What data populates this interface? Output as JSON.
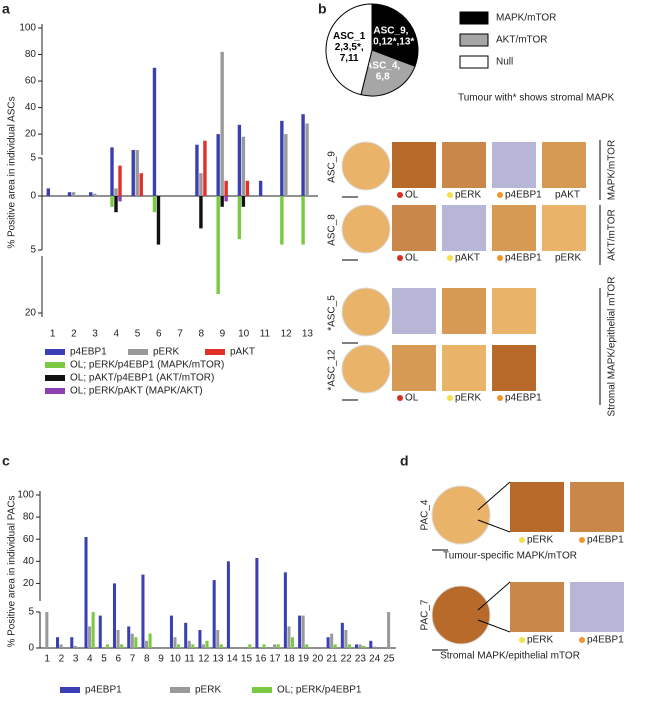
{
  "panel_labels": [
    "a",
    "b",
    "c",
    "d"
  ],
  "chart_data": [
    {
      "type": "bar",
      "y_label": "% Positive area in individual ASCs",
      "categories": [
        "1",
        "2",
        "3",
        "4",
        "5",
        "6",
        "7",
        "8",
        "9",
        "10",
        "11",
        "12",
        "13"
      ],
      "ylim": [
        0,
        100
      ],
      "axis_break": 5,
      "yticks": [
        0,
        5,
        20,
        40,
        60,
        80,
        100
      ],
      "ylim_down": [
        0,
        20
      ],
      "yticks_down": [
        5,
        20
      ],
      "series": [
        {
          "name": "p4EBP1",
          "color": "#3a3fb3",
          "values": [
            1,
            0.5,
            0.5,
            10,
            8,
            70,
            0,
            12,
            20,
            27,
            2,
            30,
            35
          ]
        },
        {
          "name": "pERK",
          "color": "#9a9a9a",
          "values": [
            0,
            0.5,
            0.3,
            1,
            8,
            0,
            0,
            3,
            82,
            18,
            0,
            20,
            28
          ]
        },
        {
          "name": "pAKT",
          "color": "#e0302a",
          "values": [
            0,
            0,
            0,
            4,
            3,
            0,
            0,
            15,
            2,
            2,
            0,
            0,
            0
          ]
        },
        {
          "name": "OL; pERK/p4EBP1 (MAPK/mTOR)",
          "color": "#7ac943",
          "direction": "down",
          "values": [
            0,
            0,
            0,
            1,
            0,
            1.5,
            0,
            0,
            15,
            4,
            0,
            4.5,
            4.5
          ]
        },
        {
          "name": "OL; pAKT/p4EBP1 (AKT/mTOR)",
          "color": "#111111",
          "direction": "down",
          "values": [
            0,
            0,
            0,
            1.5,
            0,
            4.5,
            0,
            3,
            1,
            1,
            0,
            0,
            0
          ]
        },
        {
          "name": "OL; pERK/pAKT    (MAPK/AKT)",
          "color": "#8b3fb0",
          "direction": "down",
          "values": [
            0,
            0,
            0,
            0.5,
            0,
            0,
            0,
            0,
            0.5,
            0,
            0,
            0,
            0
          ]
        }
      ]
    },
    {
      "type": "pie",
      "categories": [
        "MAPK/mTOR",
        "AKT/mTOR",
        "Null"
      ],
      "values": [
        4,
        3,
        6
      ],
      "colors": [
        "#000000",
        "#a6a6a6",
        "#ffffff"
      ],
      "slice_labels": [
        [
          "ASC_9,",
          "10,12*,13*"
        ],
        [
          "ASC_4,",
          "6,8"
        ],
        [
          "ASC_1",
          "2,3,5*,",
          "7,11"
        ]
      ],
      "note": "Tumour with* shows stromal MAPK"
    },
    {
      "type": "bar",
      "y_label": "% Positive area in individual PACs",
      "categories": [
        "1",
        "2",
        "3",
        "4",
        "5",
        "6",
        "7",
        "8",
        "9",
        "10",
        "11",
        "12",
        "13",
        "14",
        "15",
        "16",
        "17",
        "18",
        "19",
        "20",
        "21",
        "22",
        "23",
        "24",
        "25"
      ],
      "ylim": [
        0,
        100
      ],
      "axis_break": 5,
      "yticks": [
        0,
        5,
        20,
        40,
        60,
        80,
        100
      ],
      "series": [
        {
          "name": "p4EBP1",
          "color": "#3a3fb3",
          "values": [
            0,
            1.5,
            1.5,
            62,
            4.5,
            20,
            3,
            28,
            0,
            4.5,
            3.5,
            2.5,
            23,
            40,
            0,
            43,
            0,
            30,
            4.5,
            0,
            1.5,
            3.5,
            0.5,
            1,
            0
          ]
        },
        {
          "name": "pERK",
          "color": "#9a9a9a",
          "values": [
            5,
            0.5,
            0.3,
            3,
            0,
            2.5,
            2,
            1,
            0,
            1.5,
            1,
            0.5,
            2.5,
            0,
            0,
            0,
            0.5,
            3,
            4.5,
            0,
            2,
            2.5,
            0.5,
            0.2,
            5
          ]
        },
        {
          "name": "OL; pERK/p4EBP1",
          "color": "#7ac943",
          "values": [
            0,
            0,
            0,
            5,
            0.5,
            0.5,
            1.5,
            2,
            0,
            0.5,
            0.5,
            1,
            0.5,
            0,
            0.5,
            0.5,
            0.5,
            1.5,
            0.5,
            0,
            0.5,
            0.5,
            0.3,
            0,
            0
          ]
        }
      ]
    }
  ],
  "panel_b_images": {
    "rows": [
      {
        "label": "ASC_9",
        "stains": [
          {
            "label": "OL",
            "dot": "#d7301f"
          },
          {
            "label": "pERK",
            "dot": "#f5e04a"
          },
          {
            "label": "p4EBP1",
            "dot": "#f0962a"
          },
          {
            "label": "pAKT",
            "dot": null
          }
        ]
      },
      {
        "label": "ASC_8",
        "stains": [
          {
            "label": "OL",
            "dot": "#d7301f"
          },
          {
            "label": "pAKT",
            "dot": "#f5e04a"
          },
          {
            "label": "p4EBP1",
            "dot": "#f0962a"
          },
          {
            "label": "pERK",
            "dot": null
          }
        ]
      },
      {
        "label": "*ASC_5",
        "stains": []
      },
      {
        "label": "*ASC_12",
        "stains": [
          {
            "label": "OL",
            "dot": "#d7301f"
          },
          {
            "label": "pERK",
            "dot": "#f5e04a"
          },
          {
            "label": "p4EBP1",
            "dot": "#f0962a"
          }
        ]
      }
    ],
    "groups": [
      "MAPK/mTOR",
      "AKT/mTOR",
      "Stromal MAPK/epithelial mTOR"
    ]
  },
  "panel_d": {
    "rows": [
      {
        "label": "PAC_4",
        "stains": [
          {
            "label": "pERK",
            "dot": "#f5e04a"
          },
          {
            "label": "p4EBP1",
            "dot": "#f0962a"
          }
        ],
        "caption": "Tumour-specific MAPK/mTOR"
      },
      {
        "label": "PAC_7",
        "stains": [
          {
            "label": "pERK",
            "dot": "#f5e04a"
          },
          {
            "label": "p4EBP1",
            "dot": "#f0962a"
          }
        ],
        "caption": "Stromal MAPK/epithelial mTOR"
      }
    ]
  }
}
